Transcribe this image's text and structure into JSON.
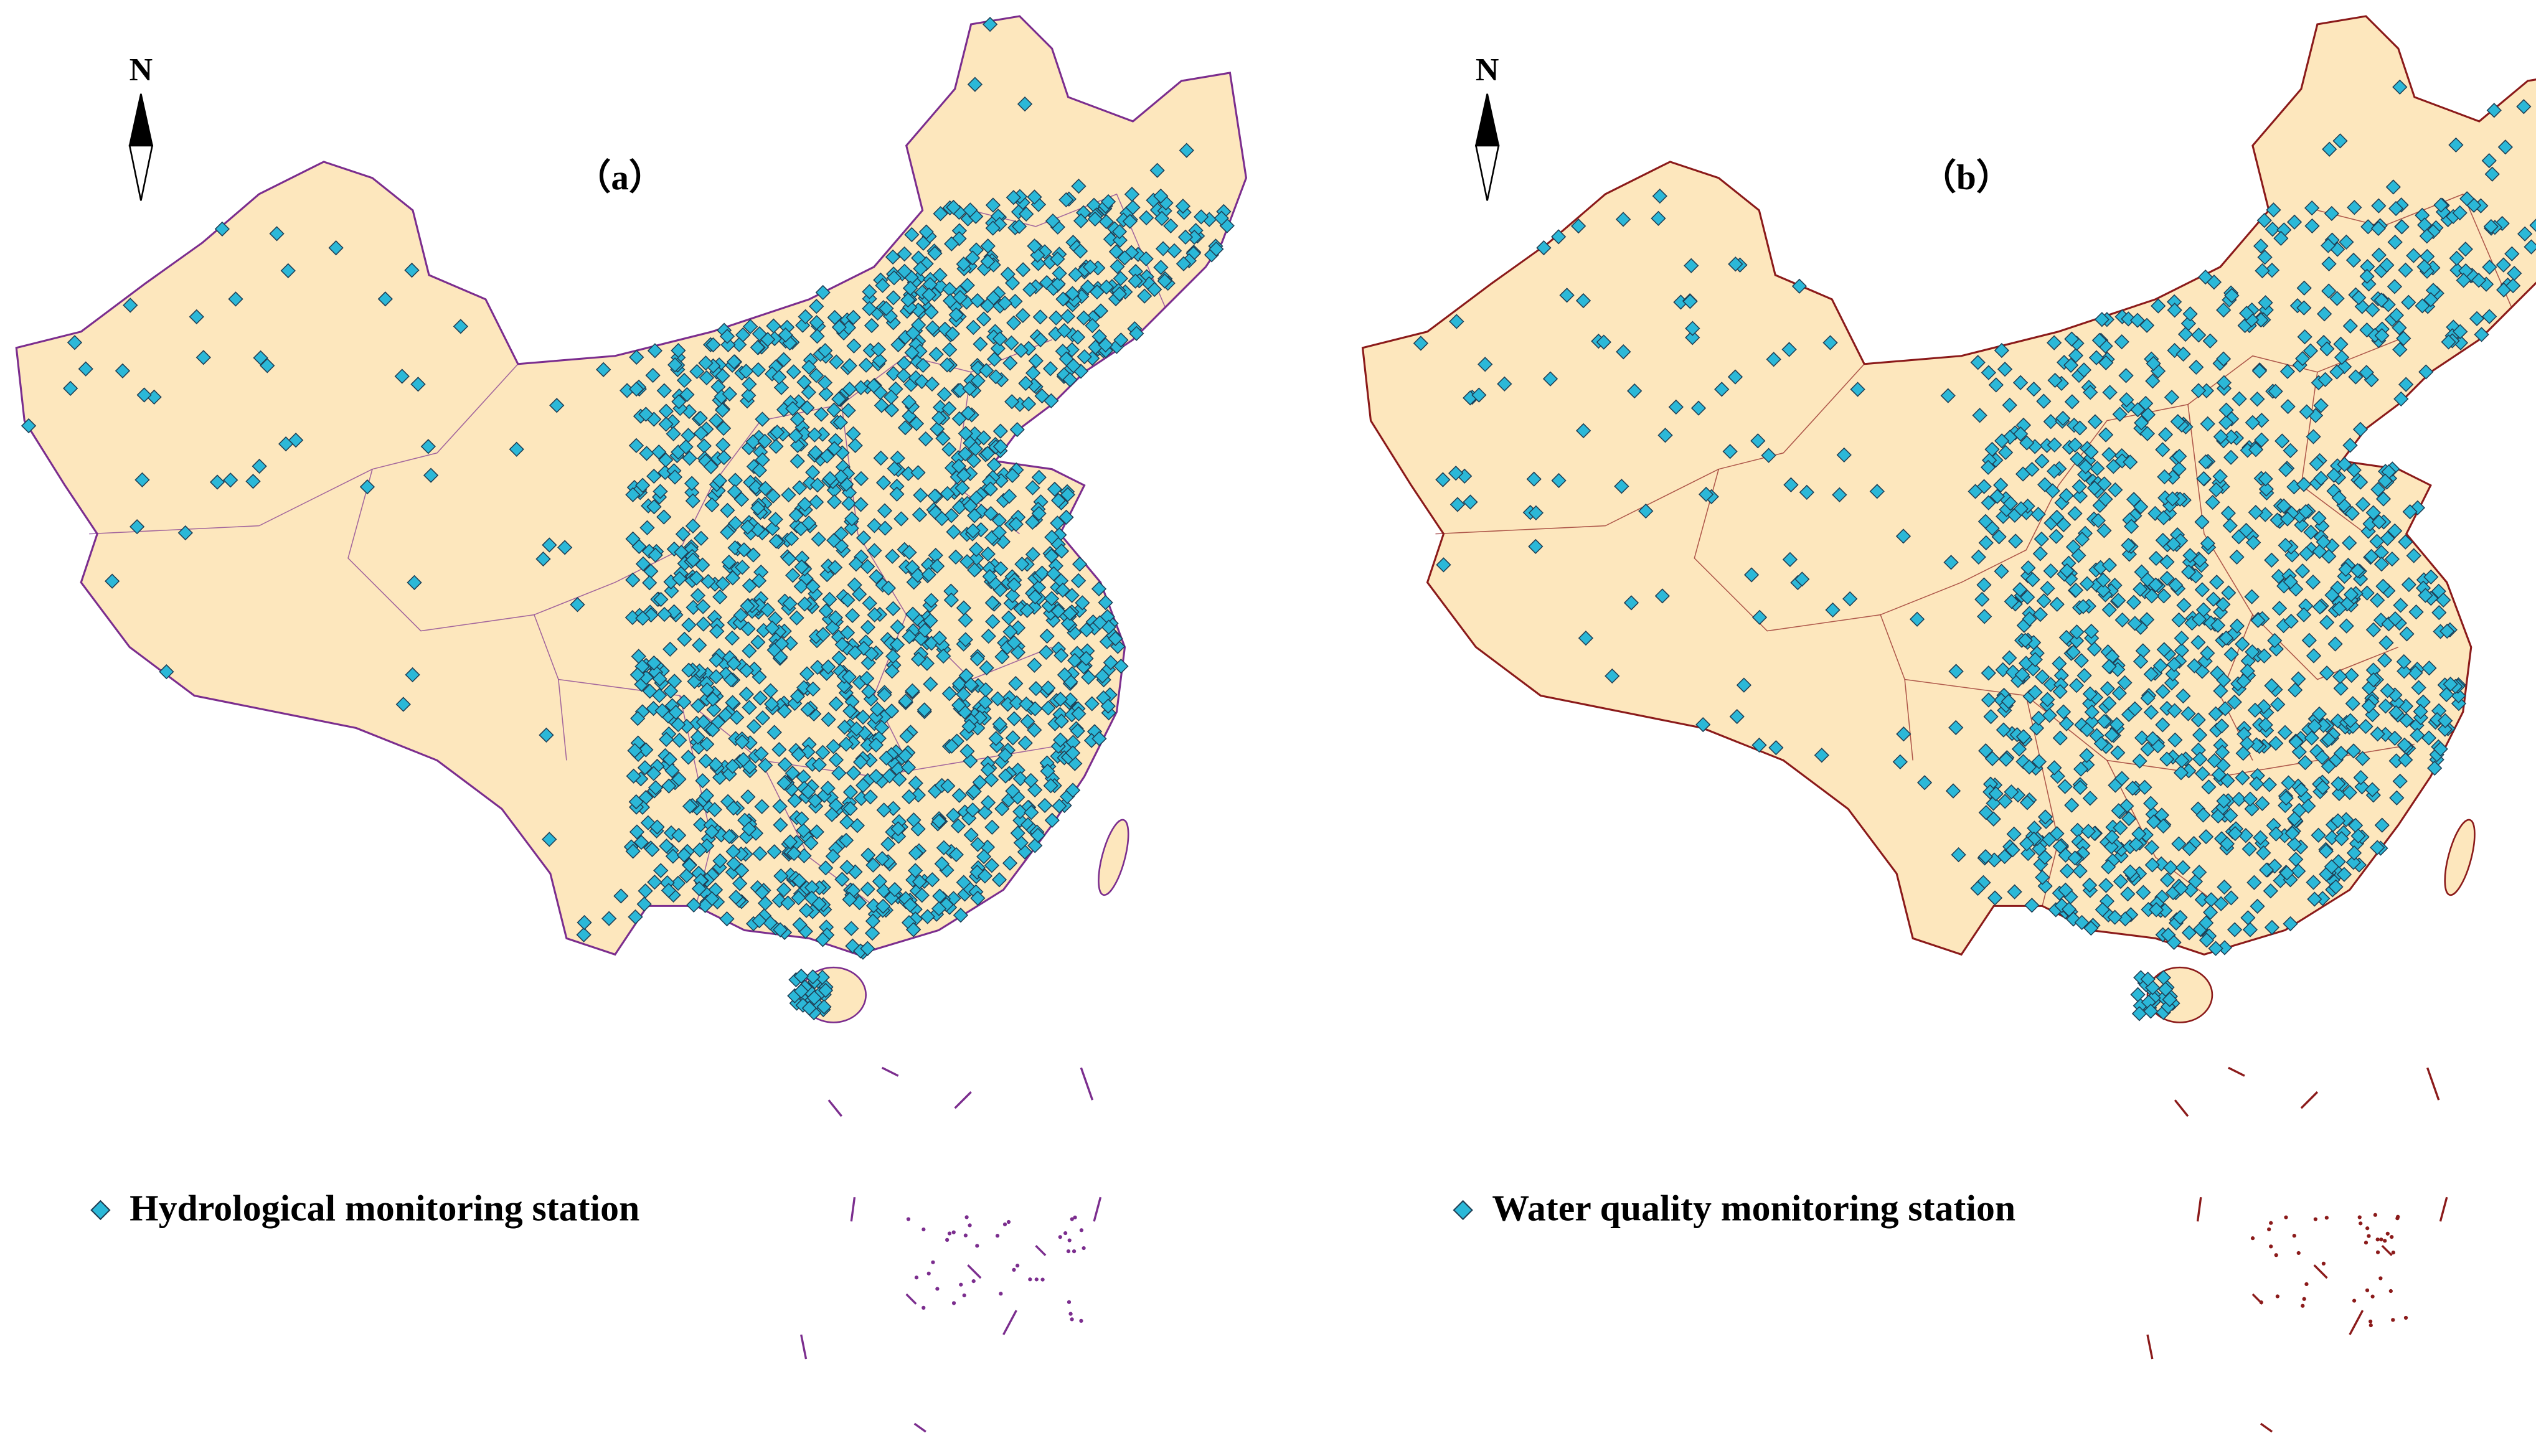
{
  "panels": [
    {
      "label": "（a）",
      "north": "N",
      "legend": "Hydrological monitoring station"
    },
    {
      "label": "（b）",
      "north": "N",
      "legend": "Water quality monitoring station"
    }
  ]
}
